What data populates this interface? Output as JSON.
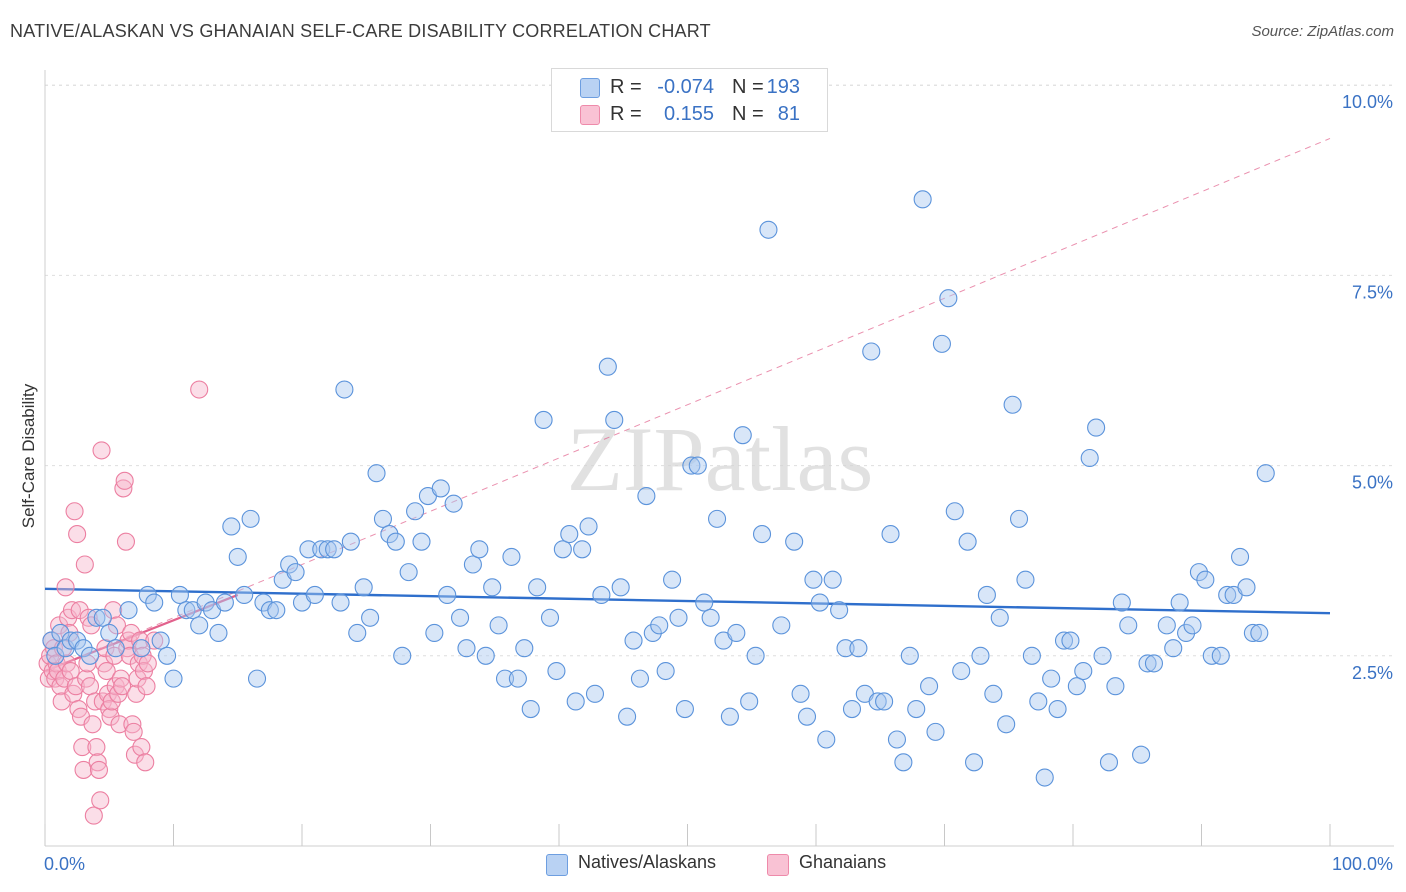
{
  "title": "NATIVE/ALASKAN VS GHANAIAN SELF-CARE DISABILITY CORRELATION CHART",
  "source": "Source: ZipAtlas.com",
  "watermark": "ZIPatlas",
  "legend": {
    "r_label": "R =",
    "n_label": "N =",
    "rows": [
      {
        "r": "-0.074",
        "n": "193",
        "fill": "#b9d2f3",
        "stroke": "#6d9ee0"
      },
      {
        "r": "0.155",
        "n": "81",
        "fill": "#f9c2d4",
        "stroke": "#ee8aaa"
      }
    ]
  },
  "colors": {
    "blue_fill": "#a9c8f0",
    "blue_stroke": "#5b93db",
    "blue_line": "#2f6fcc",
    "pink_fill": "#f7b6cb",
    "pink_stroke": "#ec7fa1",
    "pink_line": "#e2628d",
    "tick_color": "#3a72c4"
  },
  "chart_data": {
    "type": "scatter",
    "title": "NATIVE/ALASKAN VS GHANAIAN SELF-CARE DISABILITY CORRELATION CHART",
    "xlabel": "",
    "ylabel": "Self-Care Disability",
    "xlim": [
      0,
      100
    ],
    "ylim": [
      0,
      10.2
    ],
    "x_tick_labels": [
      "0.0%",
      "100.0%"
    ],
    "y_ticks": [
      2.5,
      5.0,
      7.5,
      10.0
    ],
    "y_tick_labels": [
      "2.5%",
      "5.0%",
      "7.5%",
      "10.0%"
    ],
    "series": [
      {
        "name": "Natives/Alaskans",
        "trend": {
          "x": [
            0,
            100
          ],
          "y": [
            3.38,
            3.06
          ]
        },
        "points": [
          [
            0.5,
            2.7
          ],
          [
            0.8,
            2.5
          ],
          [
            1.2,
            2.8
          ],
          [
            1.6,
            2.6
          ],
          [
            2.0,
            2.7
          ],
          [
            2.5,
            2.7
          ],
          [
            3.0,
            2.6
          ],
          [
            3.5,
            2.5
          ],
          [
            4.0,
            3.0
          ],
          [
            4.5,
            3.0
          ],
          [
            5.0,
            2.8
          ],
          [
            5.5,
            2.6
          ],
          [
            6.5,
            3.1
          ],
          [
            7.5,
            2.6
          ],
          [
            8.0,
            3.3
          ],
          [
            8.5,
            3.2
          ],
          [
            9.0,
            2.7
          ],
          [
            9.5,
            2.5
          ],
          [
            10.0,
            2.2
          ],
          [
            10.5,
            3.3
          ],
          [
            11.0,
            3.1
          ],
          [
            11.5,
            3.1
          ],
          [
            12.0,
            2.9
          ],
          [
            12.5,
            3.2
          ],
          [
            13.0,
            3.1
          ],
          [
            13.5,
            2.8
          ],
          [
            14.0,
            3.2
          ],
          [
            14.5,
            4.2
          ],
          [
            15.0,
            3.8
          ],
          [
            15.5,
            3.3
          ],
          [
            16.0,
            4.3
          ],
          [
            16.5,
            2.2
          ],
          [
            17.0,
            3.2
          ],
          [
            17.5,
            3.1
          ],
          [
            18.0,
            3.1
          ],
          [
            18.5,
            3.5
          ],
          [
            19.0,
            3.7
          ],
          [
            19.5,
            3.6
          ],
          [
            20.0,
            3.2
          ],
          [
            20.5,
            3.9
          ],
          [
            21.0,
            3.3
          ],
          [
            21.5,
            3.9
          ],
          [
            22.0,
            3.9
          ],
          [
            22.5,
            3.9
          ],
          [
            23.0,
            3.2
          ],
          [
            23.3,
            6.0
          ],
          [
            23.8,
            4.0
          ],
          [
            24.3,
            2.8
          ],
          [
            24.8,
            3.4
          ],
          [
            25.3,
            3.0
          ],
          [
            25.8,
            4.9
          ],
          [
            26.3,
            4.3
          ],
          [
            26.8,
            4.1
          ],
          [
            27.3,
            4.0
          ],
          [
            27.8,
            2.5
          ],
          [
            28.3,
            3.6
          ],
          [
            28.8,
            4.4
          ],
          [
            29.3,
            4.0
          ],
          [
            29.8,
            4.6
          ],
          [
            30.3,
            2.8
          ],
          [
            30.8,
            4.7
          ],
          [
            31.3,
            3.3
          ],
          [
            31.8,
            4.5
          ],
          [
            32.3,
            3.0
          ],
          [
            32.8,
            2.6
          ],
          [
            33.3,
            3.7
          ],
          [
            33.8,
            3.9
          ],
          [
            34.3,
            2.5
          ],
          [
            34.8,
            3.4
          ],
          [
            35.3,
            2.9
          ],
          [
            35.8,
            2.2
          ],
          [
            36.3,
            3.8
          ],
          [
            36.8,
            2.2
          ],
          [
            37.3,
            2.6
          ],
          [
            37.8,
            1.8
          ],
          [
            38.3,
            3.4
          ],
          [
            38.8,
            5.6
          ],
          [
            39.3,
            3.0
          ],
          [
            39.8,
            2.3
          ],
          [
            40.3,
            3.9
          ],
          [
            40.8,
            4.1
          ],
          [
            41.3,
            1.9
          ],
          [
            41.8,
            3.9
          ],
          [
            42.3,
            4.2
          ],
          [
            42.8,
            2.0
          ],
          [
            43.3,
            3.3
          ],
          [
            43.8,
            6.3
          ],
          [
            44.3,
            5.6
          ],
          [
            44.8,
            3.4
          ],
          [
            45.3,
            1.7
          ],
          [
            45.8,
            2.7
          ],
          [
            46.3,
            2.2
          ],
          [
            46.8,
            4.6
          ],
          [
            47.3,
            2.8
          ],
          [
            47.8,
            2.9
          ],
          [
            48.3,
            2.3
          ],
          [
            48.8,
            3.5
          ],
          [
            49.3,
            3.0
          ],
          [
            49.8,
            1.8
          ],
          [
            50.3,
            5.0
          ],
          [
            50.8,
            5.0
          ],
          [
            51.3,
            3.2
          ],
          [
            51.8,
            3.0
          ],
          [
            52.3,
            4.3
          ],
          [
            52.8,
            2.7
          ],
          [
            53.3,
            1.7
          ],
          [
            53.8,
            2.8
          ],
          [
            54.3,
            5.4
          ],
          [
            54.8,
            1.9
          ],
          [
            55.3,
            2.5
          ],
          [
            55.8,
            4.1
          ],
          [
            56.3,
            8.1
          ],
          [
            57.3,
            2.9
          ],
          [
            58.3,
            4.0
          ],
          [
            58.8,
            2.0
          ],
          [
            59.3,
            1.7
          ],
          [
            59.8,
            3.5
          ],
          [
            60.3,
            3.2
          ],
          [
            60.8,
            1.4
          ],
          [
            61.3,
            3.5
          ],
          [
            61.8,
            3.1
          ],
          [
            62.3,
            2.6
          ],
          [
            62.8,
            1.8
          ],
          [
            63.3,
            2.6
          ],
          [
            63.8,
            2.0
          ],
          [
            64.3,
            6.5
          ],
          [
            64.8,
            1.9
          ],
          [
            65.3,
            1.9
          ],
          [
            65.8,
            4.1
          ],
          [
            66.3,
            1.4
          ],
          [
            66.8,
            1.1
          ],
          [
            67.3,
            2.5
          ],
          [
            67.8,
            1.8
          ],
          [
            68.3,
            8.5
          ],
          [
            68.8,
            2.1
          ],
          [
            69.3,
            1.5
          ],
          [
            69.8,
            6.6
          ],
          [
            70.3,
            7.2
          ],
          [
            70.8,
            4.4
          ],
          [
            71.3,
            2.3
          ],
          [
            71.8,
            4.0
          ],
          [
            72.3,
            1.1
          ],
          [
            72.8,
            2.5
          ],
          [
            73.3,
            3.3
          ],
          [
            73.8,
            2.0
          ],
          [
            74.3,
            3.0
          ],
          [
            74.8,
            1.6
          ],
          [
            75.3,
            5.8
          ],
          [
            75.8,
            4.3
          ],
          [
            76.3,
            3.5
          ],
          [
            76.8,
            2.5
          ],
          [
            77.3,
            1.9
          ],
          [
            77.8,
            0.9
          ],
          [
            78.3,
            2.2
          ],
          [
            78.8,
            1.8
          ],
          [
            79.3,
            2.7
          ],
          [
            79.8,
            2.7
          ],
          [
            80.3,
            2.1
          ],
          [
            80.8,
            2.3
          ],
          [
            81.3,
            5.1
          ],
          [
            81.8,
            5.5
          ],
          [
            82.3,
            2.5
          ],
          [
            82.8,
            1.1
          ],
          [
            83.3,
            2.1
          ],
          [
            83.8,
            3.2
          ],
          [
            84.3,
            2.9
          ],
          [
            85.3,
            1.2
          ],
          [
            85.8,
            2.4
          ],
          [
            86.3,
            2.4
          ],
          [
            87.3,
            2.9
          ],
          [
            87.8,
            2.6
          ],
          [
            88.3,
            3.2
          ],
          [
            88.8,
            2.8
          ],
          [
            89.3,
            2.9
          ],
          [
            89.8,
            3.6
          ],
          [
            90.3,
            3.5
          ],
          [
            90.8,
            2.5
          ],
          [
            91.5,
            2.5
          ],
          [
            92.0,
            3.3
          ],
          [
            92.5,
            3.3
          ],
          [
            93.0,
            3.8
          ],
          [
            93.5,
            3.4
          ],
          [
            94.0,
            2.8
          ],
          [
            94.5,
            2.8
          ],
          [
            95.0,
            4.9
          ]
        ]
      },
      {
        "name": "Ghanaians",
        "trend": {
          "x": [
            0,
            15
          ],
          "y": [
            2.3,
            3.3
          ]
        },
        "trend_dashed": {
          "x": [
            0,
            100
          ],
          "y": [
            2.3,
            9.3
          ]
        },
        "points": [
          [
            0.2,
            2.4
          ],
          [
            0.3,
            2.2
          ],
          [
            0.4,
            2.5
          ],
          [
            0.5,
            2.7
          ],
          [
            0.6,
            2.3
          ],
          [
            0.7,
            2.6
          ],
          [
            0.8,
            2.2
          ],
          [
            0.9,
            2.4
          ],
          [
            1.0,
            2.3
          ],
          [
            1.1,
            2.9
          ],
          [
            1.2,
            2.1
          ],
          [
            1.3,
            1.9
          ],
          [
            1.4,
            2.6
          ],
          [
            1.5,
            2.2
          ],
          [
            1.6,
            3.4
          ],
          [
            1.7,
            2.4
          ],
          [
            1.8,
            3.0
          ],
          [
            1.9,
            2.8
          ],
          [
            2.0,
            2.3
          ],
          [
            2.1,
            3.1
          ],
          [
            2.2,
            2.0
          ],
          [
            2.3,
            4.4
          ],
          [
            2.4,
            2.1
          ],
          [
            2.5,
            4.1
          ],
          [
            2.6,
            1.8
          ],
          [
            2.7,
            3.1
          ],
          [
            2.8,
            1.7
          ],
          [
            2.9,
            1.3
          ],
          [
            3.0,
            1.0
          ],
          [
            3.1,
            3.7
          ],
          [
            3.2,
            2.2
          ],
          [
            3.3,
            2.4
          ],
          [
            3.4,
            3.0
          ],
          [
            3.5,
            2.1
          ],
          [
            3.6,
            2.9
          ],
          [
            3.7,
            1.6
          ],
          [
            3.8,
            0.4
          ],
          [
            3.9,
            1.9
          ],
          [
            4.0,
            1.3
          ],
          [
            4.1,
            1.1
          ],
          [
            4.2,
            1.0
          ],
          [
            4.3,
            0.6
          ],
          [
            4.4,
            5.2
          ],
          [
            4.5,
            1.9
          ],
          [
            4.6,
            2.4
          ],
          [
            4.7,
            2.6
          ],
          [
            4.8,
            2.3
          ],
          [
            4.9,
            2.0
          ],
          [
            5.0,
            1.8
          ],
          [
            5.1,
            1.7
          ],
          [
            5.2,
            1.9
          ],
          [
            5.3,
            3.1
          ],
          [
            5.4,
            2.5
          ],
          [
            5.5,
            2.1
          ],
          [
            5.6,
            2.9
          ],
          [
            5.7,
            2.0
          ],
          [
            5.8,
            1.6
          ],
          [
            5.9,
            2.2
          ],
          [
            6.0,
            2.1
          ],
          [
            6.1,
            4.7
          ],
          [
            6.2,
            4.8
          ],
          [
            6.3,
            4.0
          ],
          [
            6.4,
            2.6
          ],
          [
            6.5,
            2.7
          ],
          [
            6.6,
            2.5
          ],
          [
            6.7,
            2.8
          ],
          [
            6.8,
            1.6
          ],
          [
            6.9,
            1.5
          ],
          [
            7.0,
            1.2
          ],
          [
            7.1,
            2.0
          ],
          [
            7.2,
            2.2
          ],
          [
            7.3,
            2.4
          ],
          [
            7.4,
            2.7
          ],
          [
            7.5,
            1.3
          ],
          [
            7.6,
            2.5
          ],
          [
            7.7,
            2.3
          ],
          [
            7.8,
            1.1
          ],
          [
            7.9,
            2.1
          ],
          [
            8.0,
            2.4
          ],
          [
            8.5,
            2.7
          ],
          [
            12.0,
            6.0
          ]
        ]
      }
    ]
  },
  "bottom_legend": [
    {
      "label": "Natives/Alaskans"
    },
    {
      "label": "Ghanaians"
    }
  ]
}
